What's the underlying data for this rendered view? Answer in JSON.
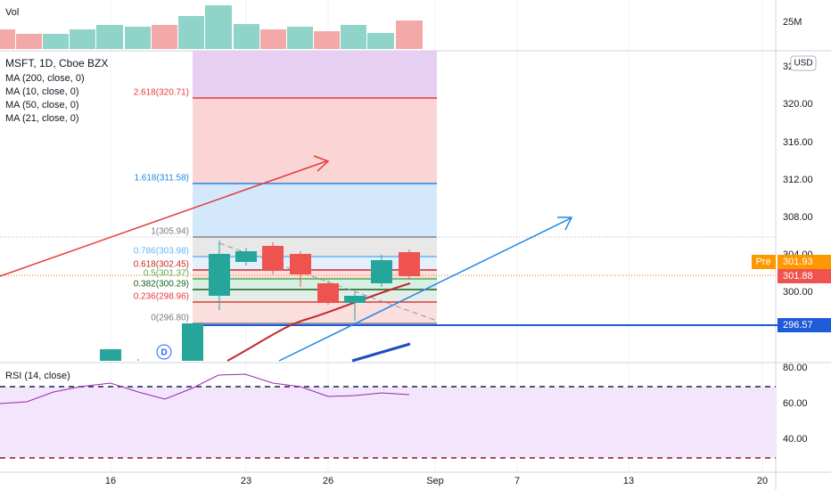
{
  "legend": {
    "symbol": "MSFT, 1D, Cboe BZX",
    "indicators": [
      "MA (200, close, 0)",
      "MA (10, close, 0)",
      "MA (50, close, 0)",
      "MA (21, close, 0)"
    ]
  },
  "volume": {
    "label": "Vol",
    "axis": "25M"
  },
  "price_axis": {
    "currency": "USD",
    "ticks": [
      "32",
      "320.00",
      "316.00",
      "312.00",
      "308.00",
      "304.00",
      "300.00"
    ]
  },
  "fib_levels": [
    "2.618(320.71)",
    "1.618(311.58)",
    "1(305.94)",
    "0.786(303.98)",
    "0.618(302.45)",
    "0.5(301.37)",
    "0.382(300.29)",
    "0.236(298.96)",
    "0(296.80)"
  ],
  "badges": {
    "pre": "Pre",
    "pre_price": "301.93",
    "last": "301.88",
    "line": "296.57"
  },
  "event_marker": "D",
  "rsi": {
    "title": "RSI (14, close)",
    "ticks": [
      "80.00",
      "60.00",
      "40.00"
    ]
  },
  "x_axis": [
    "16",
    "23",
    "26",
    "Sep",
    "7",
    "13",
    "20"
  ]
}
